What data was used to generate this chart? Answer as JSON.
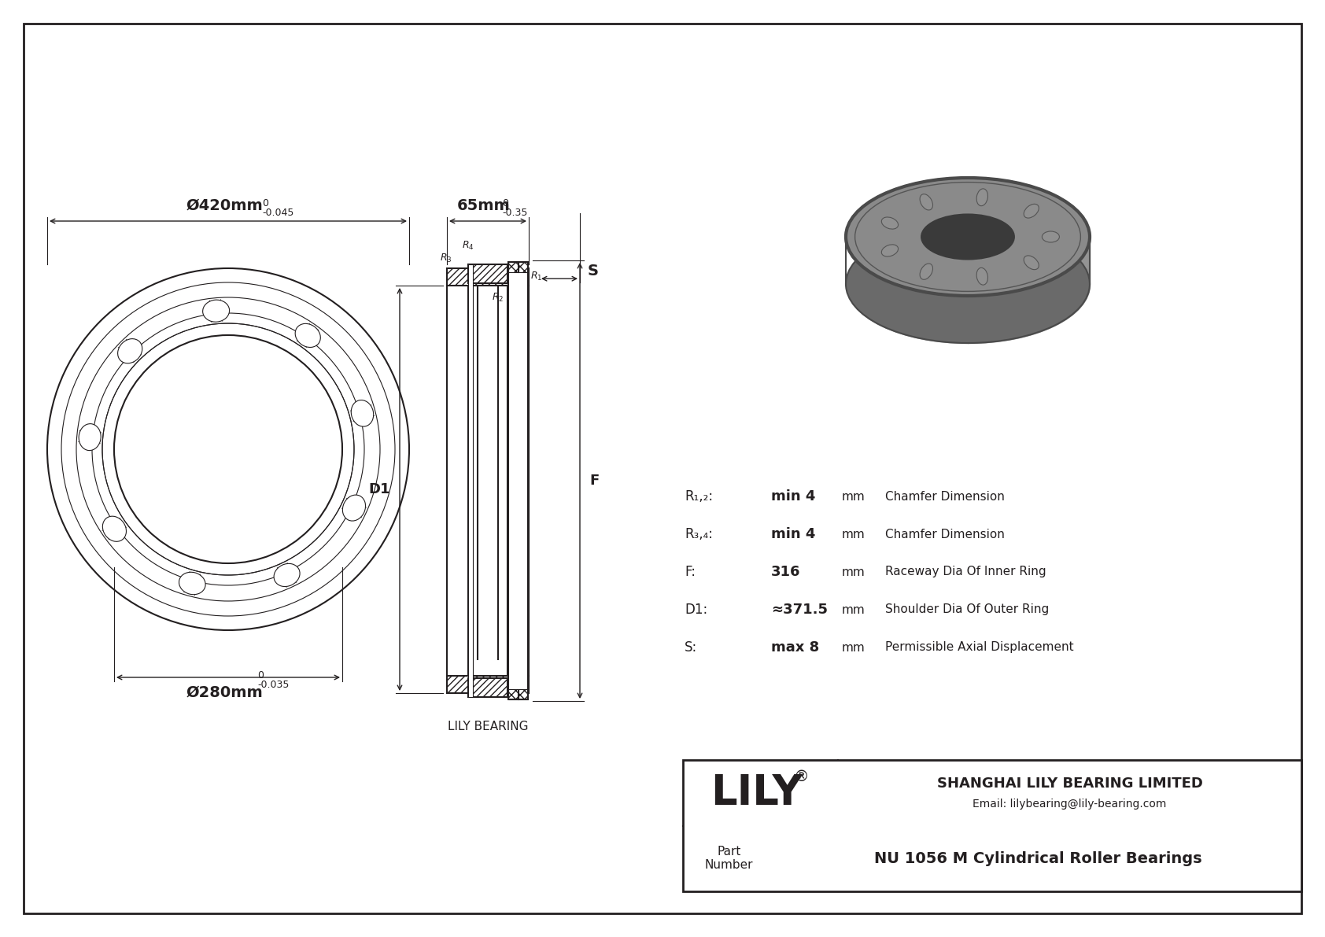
{
  "bg_color": "#ffffff",
  "line_color": "#231f20",
  "title_company": "SHANGHAI LILY BEARING LIMITED",
  "title_email": "Email: lilybearing@lily-bearing.com",
  "part_label": "Part\nNumber",
  "part_number": "NU 1056 M Cylindrical Roller Bearings",
  "lily_text": "LILY",
  "dim_outer": "Ø420mm",
  "dim_outer_tol_top": "0",
  "dim_outer_tol_bot": "-0.045",
  "dim_inner": "Ø280mm",
  "dim_inner_tol_top": "0",
  "dim_inner_tol_bot": "-0.035",
  "dim_width": "65mm",
  "dim_width_tol_top": "0",
  "dim_width_tol_bot": "-0.35",
  "dim_S": "S",
  "dim_D1": "D1",
  "dim_F": "F",
  "specs": [
    [
      "R₁,₂:",
      "min 4",
      "mm",
      "Chamfer Dimension"
    ],
    [
      "R₃,₄:",
      "min 4",
      "mm",
      "Chamfer Dimension"
    ],
    [
      "F:",
      "316",
      "mm",
      "Raceway Dia Of Inner Ring"
    ],
    [
      "D1:",
      "≈371.5",
      "mm",
      "Shoulder Dia Of Outer Ring"
    ],
    [
      "S:",
      "max 8",
      "mm",
      "Permissible Axial Displacement"
    ]
  ],
  "lily_bearing_label": "LILY BEARING"
}
